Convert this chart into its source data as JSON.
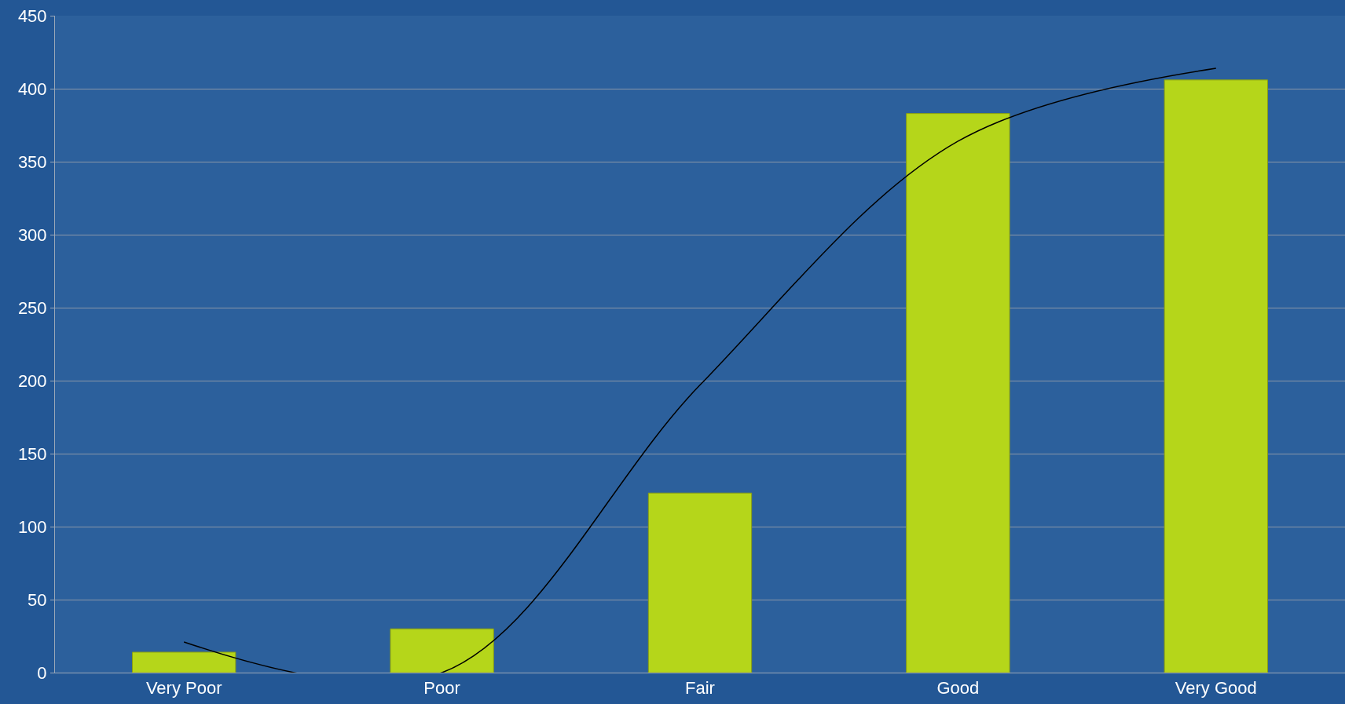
{
  "chart_data": {
    "type": "bar",
    "categories": [
      "Very Poor",
      "Poor",
      "Fair",
      "Good",
      "Very Good"
    ],
    "series": [
      {
        "color": "#b5d61a",
        "values": [
          14,
          30,
          123,
          383,
          406
        ]
      },
      {
        "type": "line",
        "color": "#000000",
        "values": [
          21,
          0,
          197,
          364,
          414
        ]
      }
    ],
    "ylim": [
      0,
      450
    ],
    "yticks": [
      0,
      50,
      100,
      150,
      200,
      250,
      300,
      350,
      400,
      450
    ],
    "grid": "y",
    "marker": "none"
  }
}
